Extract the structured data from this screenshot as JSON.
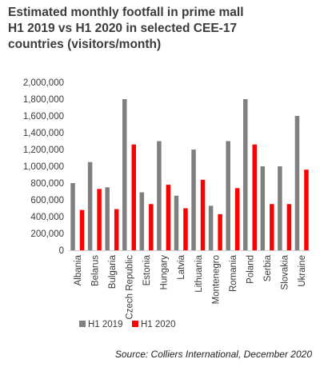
{
  "title_lines": [
    "Estimated monthly footfall in prime mall",
    "H1 2019 vs H1 2020 in selected CEE-17",
    "countries (visitors/month)"
  ],
  "source": "Source: Colliers International, December 2020",
  "chart_data": {
    "type": "bar",
    "title": "Estimated monthly footfall in prime mall H1 2019 vs H1 2020 in selected CEE-17 countries (visitors/month)",
    "categories": [
      "Albania",
      "Belarus",
      "Bulgaria",
      "Czech Republic",
      "Estonia",
      "Hungary",
      "Latvia",
      "Lithuania",
      "Montenegro",
      "Romania",
      "Poland",
      "Serbia",
      "Slovakia",
      "Ukraine"
    ],
    "series": [
      {
        "name": "H1 2019",
        "color": "#7f7f7f",
        "values": [
          800000,
          1050000,
          750000,
          1800000,
          690000,
          1300000,
          650000,
          1200000,
          530000,
          1300000,
          1800000,
          1000000,
          1000000,
          1600000
        ]
      },
      {
        "name": "H1 2020",
        "color": "#ff0000",
        "values": [
          480000,
          730000,
          490000,
          1260000,
          550000,
          780000,
          500000,
          840000,
          430000,
          740000,
          1260000,
          550000,
          550000,
          960000
        ]
      }
    ],
    "yticks": [
      "0",
      "200,000",
      "400,000",
      "600,000",
      "800,000",
      "1,000,000",
      "1,200,000",
      "1,400,000",
      "1,600,000",
      "1,800,000",
      "2,000,000"
    ],
    "ylim": [
      0,
      2000000
    ],
    "grid": false,
    "legend_position": "bottom-left"
  }
}
